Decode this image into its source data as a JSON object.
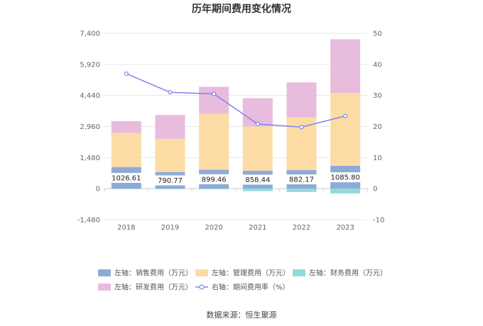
{
  "chart_data": {
    "type": "bar",
    "title": "历年期间费用变化情况",
    "categories": [
      "2018",
      "2019",
      "2020",
      "2021",
      "2022",
      "2023"
    ],
    "left_axis": {
      "ylim": [
        -1480,
        7400
      ],
      "ticks": [
        7400,
        5920,
        4440,
        2960,
        1480,
        0,
        -1480
      ],
      "tick_labels": [
        "7,400",
        "5,920",
        "4,440",
        "2,960",
        "1,480",
        "0",
        "-1,480"
      ]
    },
    "right_axis": {
      "ylim": [
        -10,
        50
      ],
      "ticks": [
        50,
        40,
        30,
        20,
        10,
        0,
        -10
      ],
      "tick_labels": [
        "50",
        "40",
        "30",
        "20",
        "10",
        "0",
        "-10"
      ]
    },
    "series": [
      {
        "name": "左轴：销售费用（万元）",
        "axis": "left",
        "kind": "bar",
        "color": "#8eabd8",
        "values": [
          1026.61,
          790.77,
          899.46,
          858.44,
          882.17,
          1085.8
        ]
      },
      {
        "name": "左轴：管理费用（万元）",
        "axis": "left",
        "kind": "bar",
        "color": "#fcdca4",
        "values": [
          1630,
          1580,
          2670,
          2110,
          2520,
          3470
        ]
      },
      {
        "name": "左轴：财务费用（万元）",
        "axis": "left",
        "kind": "bar",
        "color": "#94dadb",
        "values": [
          -20,
          -25,
          -30,
          -120,
          -160,
          -230
        ]
      },
      {
        "name": "左轴：研发费用（万元）",
        "axis": "left",
        "kind": "bar",
        "color": "#e8bcdc",
        "values": [
          560,
          1140,
          1280,
          1340,
          1660,
          2560
        ]
      },
      {
        "name": "右轴：期间费用率（%）",
        "axis": "right",
        "kind": "line",
        "color": "#7f83f0",
        "values": [
          37.0,
          31.0,
          30.5,
          20.8,
          19.8,
          23.4
        ]
      }
    ],
    "data_labels": [
      "1026.61",
      "790.77",
      "899.46",
      "858.44",
      "882.17",
      "1085.80"
    ],
    "legend_position": "bottom"
  },
  "source_text": "数据来源：恒生聚源"
}
